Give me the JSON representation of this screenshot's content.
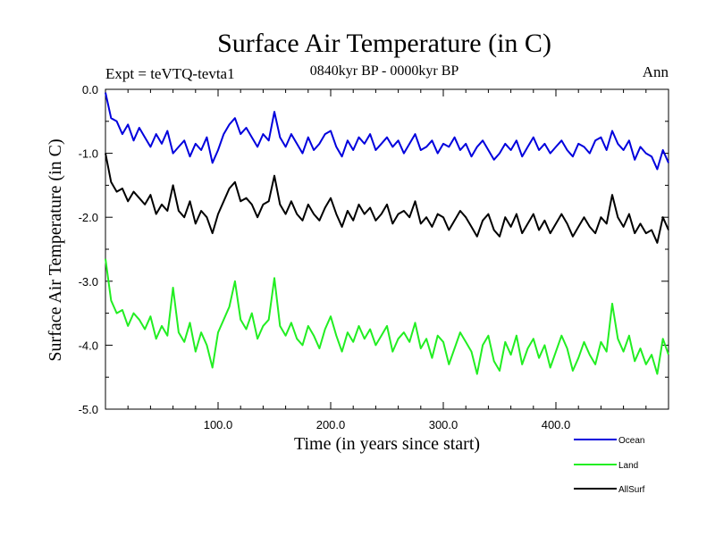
{
  "chart_data": {
    "type": "line",
    "title": "Surface Air Temperature (in C)",
    "subtitle": "0840kyr BP - 0000kyr BP",
    "left_annotation": "Expt = teVTQ-tevta1",
    "right_annotation": "Ann",
    "xlabel": "Time (in years since start)",
    "ylabel": "Surface Air Temperature (in C)",
    "xlim": [
      0,
      500
    ],
    "ylim": [
      -5.0,
      0.0
    ],
    "x_ticks": [
      100,
      200,
      300,
      400
    ],
    "x_tick_labels": [
      "100.0",
      "200.0",
      "300.0",
      "400.0"
    ],
    "y_ticks": [
      0.0,
      -1.0,
      -2.0,
      -3.0,
      -4.0,
      -5.0
    ],
    "y_tick_labels": [
      "0.0",
      "-1.0",
      "-2.0",
      "-3.0",
      "-4.0",
      "-5.0"
    ],
    "legend_position": "bottom-right",
    "series": [
      {
        "name": "Ocean",
        "color": "#0000dd",
        "x": [
          0,
          5,
          10,
          15,
          20,
          25,
          30,
          35,
          40,
          45,
          50,
          55,
          60,
          65,
          70,
          75,
          80,
          85,
          90,
          95,
          100,
          105,
          110,
          115,
          120,
          125,
          130,
          135,
          140,
          145,
          150,
          155,
          160,
          165,
          170,
          175,
          180,
          185,
          190,
          195,
          200,
          205,
          210,
          215,
          220,
          225,
          230,
          235,
          240,
          245,
          250,
          255,
          260,
          265,
          270,
          275,
          280,
          285,
          290,
          295,
          300,
          305,
          310,
          315,
          320,
          325,
          330,
          335,
          340,
          345,
          350,
          355,
          360,
          365,
          370,
          375,
          380,
          385,
          390,
          395,
          400,
          405,
          410,
          415,
          420,
          425,
          430,
          435,
          440,
          445,
          450,
          455,
          460,
          465,
          470,
          475,
          480,
          485,
          490,
          495,
          500
        ],
        "values": [
          -0.05,
          -0.45,
          -0.5,
          -0.7,
          -0.55,
          -0.8,
          -0.6,
          -0.75,
          -0.9,
          -0.7,
          -0.85,
          -0.65,
          -1.0,
          -0.9,
          -0.8,
          -1.05,
          -0.85,
          -0.95,
          -0.75,
          -1.15,
          -0.95,
          -0.7,
          -0.55,
          -0.45,
          -0.7,
          -0.6,
          -0.75,
          -0.9,
          -0.7,
          -0.8,
          -0.35,
          -0.75,
          -0.9,
          -0.7,
          -0.85,
          -1.0,
          -0.75,
          -0.95,
          -0.85,
          -0.7,
          -0.65,
          -0.9,
          -1.05,
          -0.8,
          -0.95,
          -0.75,
          -0.85,
          -0.7,
          -0.95,
          -0.85,
          -0.75,
          -0.9,
          -0.8,
          -1.0,
          -0.85,
          -0.7,
          -0.95,
          -0.9,
          -0.8,
          -1.0,
          -0.85,
          -0.9,
          -0.75,
          -0.95,
          -0.85,
          -1.05,
          -0.9,
          -0.8,
          -0.95,
          -1.1,
          -1.0,
          -0.85,
          -0.95,
          -0.8,
          -1.05,
          -0.9,
          -0.75,
          -0.95,
          -0.85,
          -1.0,
          -0.9,
          -0.8,
          -0.95,
          -1.05,
          -0.85,
          -0.9,
          -1.0,
          -0.8,
          -0.75,
          -0.95,
          -0.65,
          -0.85,
          -0.95,
          -0.8,
          -1.1,
          -0.9,
          -1.0,
          -1.05,
          -1.25,
          -0.95,
          -1.15
        ]
      },
      {
        "name": "Land",
        "color": "#22ee22",
        "x": [
          0,
          5,
          10,
          15,
          20,
          25,
          30,
          35,
          40,
          45,
          50,
          55,
          60,
          65,
          70,
          75,
          80,
          85,
          90,
          95,
          100,
          105,
          110,
          115,
          120,
          125,
          130,
          135,
          140,
          145,
          150,
          155,
          160,
          165,
          170,
          175,
          180,
          185,
          190,
          195,
          200,
          205,
          210,
          215,
          220,
          225,
          230,
          235,
          240,
          245,
          250,
          255,
          260,
          265,
          270,
          275,
          280,
          285,
          290,
          295,
          300,
          305,
          310,
          315,
          320,
          325,
          330,
          335,
          340,
          345,
          350,
          355,
          360,
          365,
          370,
          375,
          380,
          385,
          390,
          395,
          400,
          405,
          410,
          415,
          420,
          425,
          430,
          435,
          440,
          445,
          450,
          455,
          460,
          465,
          470,
          475,
          480,
          485,
          490,
          495,
          500
        ],
        "values": [
          -2.65,
          -3.3,
          -3.5,
          -3.45,
          -3.7,
          -3.5,
          -3.6,
          -3.75,
          -3.55,
          -3.9,
          -3.7,
          -3.85,
          -3.1,
          -3.8,
          -3.95,
          -3.65,
          -4.1,
          -3.8,
          -4.0,
          -4.35,
          -3.8,
          -3.6,
          -3.4,
          -3.0,
          -3.6,
          -3.75,
          -3.5,
          -3.9,
          -3.7,
          -3.6,
          -2.95,
          -3.7,
          -3.85,
          -3.65,
          -3.9,
          -4.0,
          -3.7,
          -3.85,
          -4.05,
          -3.75,
          -3.55,
          -3.85,
          -4.1,
          -3.8,
          -3.95,
          -3.7,
          -3.9,
          -3.75,
          -4.0,
          -3.85,
          -3.7,
          -4.1,
          -3.9,
          -3.8,
          -3.95,
          -3.65,
          -4.05,
          -3.9,
          -4.2,
          -3.85,
          -3.95,
          -4.3,
          -4.05,
          -3.8,
          -3.95,
          -4.1,
          -4.45,
          -4.0,
          -3.85,
          -4.25,
          -4.4,
          -3.95,
          -4.15,
          -3.85,
          -4.3,
          -4.05,
          -3.9,
          -4.2,
          -4.0,
          -4.35,
          -4.1,
          -3.85,
          -4.05,
          -4.4,
          -4.2,
          -3.95,
          -4.15,
          -4.3,
          -3.95,
          -4.1,
          -3.35,
          -3.9,
          -4.1,
          -3.85,
          -4.25,
          -4.05,
          -4.3,
          -4.15,
          -4.45,
          -3.9,
          -4.15
        ]
      },
      {
        "name": "AllSurf",
        "color": "#000000",
        "x": [
          0,
          5,
          10,
          15,
          20,
          25,
          30,
          35,
          40,
          45,
          50,
          55,
          60,
          65,
          70,
          75,
          80,
          85,
          90,
          95,
          100,
          105,
          110,
          115,
          120,
          125,
          130,
          135,
          140,
          145,
          150,
          155,
          160,
          165,
          170,
          175,
          180,
          185,
          190,
          195,
          200,
          205,
          210,
          215,
          220,
          225,
          230,
          235,
          240,
          245,
          250,
          255,
          260,
          265,
          270,
          275,
          280,
          285,
          290,
          295,
          300,
          305,
          310,
          315,
          320,
          325,
          330,
          335,
          340,
          345,
          350,
          355,
          360,
          365,
          370,
          375,
          380,
          385,
          390,
          395,
          400,
          405,
          410,
          415,
          420,
          425,
          430,
          435,
          440,
          445,
          450,
          455,
          460,
          465,
          470,
          475,
          480,
          485,
          490,
          495,
          500
        ],
        "values": [
          -1.0,
          -1.45,
          -1.6,
          -1.55,
          -1.75,
          -1.6,
          -1.7,
          -1.8,
          -1.65,
          -1.95,
          -1.8,
          -1.9,
          -1.5,
          -1.9,
          -2.0,
          -1.75,
          -2.1,
          -1.9,
          -2.0,
          -2.25,
          -1.95,
          -1.75,
          -1.55,
          -1.45,
          -1.75,
          -1.7,
          -1.8,
          -2.0,
          -1.8,
          -1.75,
          -1.35,
          -1.8,
          -1.95,
          -1.75,
          -1.95,
          -2.05,
          -1.8,
          -1.95,
          -2.05,
          -1.85,
          -1.7,
          -1.95,
          -2.15,
          -1.9,
          -2.05,
          -1.8,
          -1.95,
          -1.85,
          -2.05,
          -1.95,
          -1.8,
          -2.1,
          -1.95,
          -1.9,
          -2.0,
          -1.75,
          -2.1,
          -2.0,
          -2.15,
          -1.95,
          -2.0,
          -2.2,
          -2.05,
          -1.9,
          -2.0,
          -2.15,
          -2.3,
          -2.05,
          -1.95,
          -2.2,
          -2.3,
          -2.0,
          -2.15,
          -1.95,
          -2.25,
          -2.1,
          -1.95,
          -2.2,
          -2.05,
          -2.25,
          -2.1,
          -1.95,
          -2.1,
          -2.3,
          -2.15,
          -2.0,
          -2.15,
          -2.25,
          -2.0,
          -2.1,
          -1.65,
          -2.0,
          -2.15,
          -1.95,
          -2.25,
          -2.1,
          -2.25,
          -2.2,
          -2.4,
          -2.0,
          -2.2
        ]
      }
    ]
  }
}
